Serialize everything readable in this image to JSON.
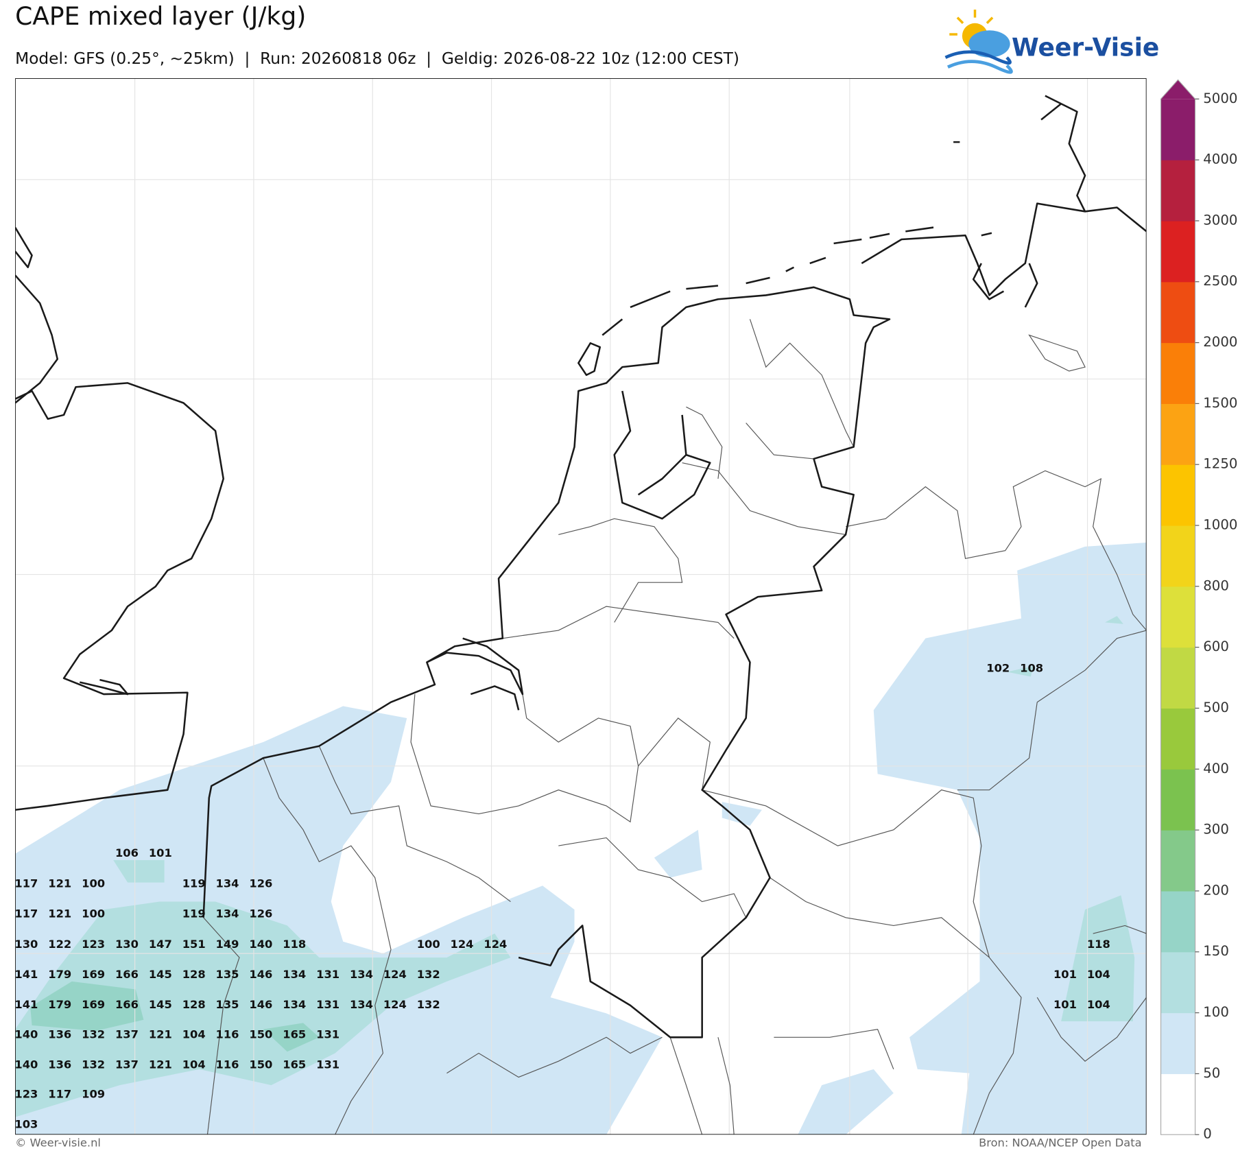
{
  "header": {
    "title": "CAPE mixed layer (J/kg)",
    "subtitle": "Model: GFS (0.25°, ~25km)  |  Run: 20260818 06z  |  Geldig: 2026-08-22 10z (12:00 CEST)",
    "logo": "Weer-Visie"
  },
  "colorbar": {
    "ticks": [
      0,
      50,
      100,
      150,
      200,
      300,
      400,
      500,
      600,
      800,
      1000,
      1250,
      1500,
      2000,
      2500,
      3000,
      4000,
      5000
    ],
    "colors": [
      "#ffffff",
      "#d0e6f5",
      "#b3dfe0",
      "#96d4c7",
      "#84c98a",
      "#7bc24f",
      "#99c93c",
      "#c1d944",
      "#dde03a",
      "#f2d41a",
      "#fcc400",
      "#fca313",
      "#fa7f08",
      "#ee4d12",
      "#dc2121",
      "#b5203e",
      "#8b1d6a"
    ],
    "extend_color": "#8b1d6a"
  },
  "grid_values": [
    [
      null,
      null,
      null,
      null,
      null,
      null,
      null,
      null,
      null,
      null,
      null,
      null,
      null,
      null,
      null,
      null,
      null,
      null,
      null,
      null,
      null,
      null,
      null,
      null,
      null,
      null,
      null,
      null,
      null,
      102,
      108
    ],
    [
      null,
      null,
      null,
      106,
      101
    ],
    [
      117,
      121,
      100,
      null,
      null,
      119,
      134,
      126
    ],
    [
      117,
      121,
      100,
      null,
      null,
      119,
      134,
      126
    ],
    [
      130,
      122,
      123,
      130,
      147,
      151,
      149,
      140,
      118,
      null,
      null,
      null,
      100,
      124,
      124,
      null,
      null,
      null,
      null,
      null,
      null,
      null,
      null,
      null,
      null,
      null,
      null,
      null,
      null,
      null,
      null,
      null,
      118
    ],
    [
      141,
      179,
      169,
      166,
      145,
      128,
      135,
      146,
      134,
      131,
      134,
      124,
      132,
      null,
      null,
      null,
      null,
      null,
      null,
      null,
      null,
      null,
      null,
      null,
      null,
      null,
      null,
      null,
      null,
      null,
      null,
      101,
      104
    ],
    [
      141,
      179,
      169,
      166,
      145,
      128,
      135,
      146,
      134,
      131,
      134,
      124,
      132,
      null,
      null,
      null,
      null,
      null,
      null,
      null,
      null,
      null,
      null,
      null,
      null,
      null,
      null,
      null,
      null,
      null,
      null,
      101,
      104
    ],
    [
      140,
      136,
      132,
      137,
      121,
      104,
      116,
      150,
      165,
      131
    ],
    [
      140,
      136,
      132,
      137,
      121,
      104,
      116,
      150,
      165,
      131
    ],
    [
      123,
      117,
      109
    ],
    [
      103
    ]
  ],
  "footer": {
    "left": "© Weer-visie.nl",
    "right": "Bron: NOAA/NCEP Open Data"
  }
}
